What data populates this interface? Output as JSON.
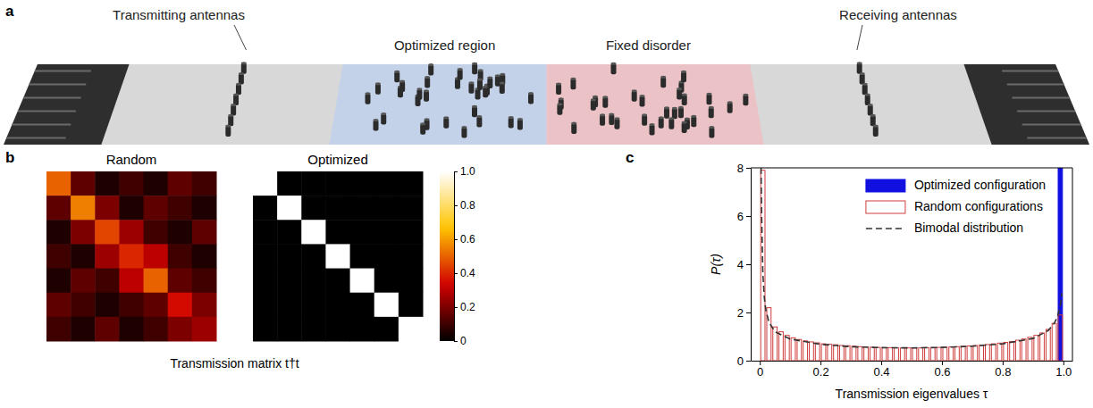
{
  "panel_labels": [
    "a",
    "b",
    "c"
  ],
  "diagram": {
    "labels": [
      "Transmitting antennas",
      "Optimized region",
      "Fixed disorder",
      "Receiving antennas"
    ]
  },
  "chart_data": [
    {
      "type": "heatmap",
      "title": "Random",
      "xlabel": "Transmission matrix t†t",
      "tick_labels": false,
      "cells": [
        [
          0.5,
          0.15,
          0.05,
          0.1,
          0.05,
          0.15,
          0.1
        ],
        [
          0.15,
          0.55,
          0.2,
          0.05,
          0.15,
          0.1,
          0.05
        ],
        [
          0.05,
          0.2,
          0.45,
          0.25,
          0.1,
          0.05,
          0.15
        ],
        [
          0.1,
          0.05,
          0.25,
          0.4,
          0.3,
          0.1,
          0.05
        ],
        [
          0.05,
          0.15,
          0.1,
          0.3,
          0.5,
          0.15,
          0.1
        ],
        [
          0.15,
          0.1,
          0.05,
          0.1,
          0.15,
          0.35,
          0.2
        ],
        [
          0.1,
          0.05,
          0.15,
          0.05,
          0.1,
          0.2,
          0.25
        ]
      ]
    },
    {
      "type": "heatmap",
      "title": "Optimized",
      "tick_labels": false,
      "cells": [
        [
          1,
          0,
          0,
          0,
          0,
          0,
          0
        ],
        [
          0,
          1,
          0,
          0,
          0,
          0,
          0
        ],
        [
          0,
          0,
          1,
          0,
          0,
          0,
          0
        ],
        [
          0,
          0,
          0,
          1,
          0,
          0,
          0
        ],
        [
          0,
          0,
          0,
          0,
          1,
          0,
          0
        ],
        [
          0,
          0,
          0,
          0,
          0,
          1,
          0
        ],
        [
          0,
          0,
          0,
          0,
          0,
          0,
          1
        ]
      ],
      "color_range": [
        0,
        1
      ],
      "color_ticks": [
        0,
        0.2,
        0.4,
        0.6,
        0.8,
        {
          "value": 1,
          "label": "1.0"
        }
      ]
    },
    {
      "type": "histogram",
      "xlabel": "Transmission eigenvalues τ",
      "ylabel": "P(τ)",
      "xlim": [
        -0.03,
        1.03
      ],
      "ylim": [
        0,
        8
      ],
      "xticks": [
        0,
        0.2,
        0.4,
        0.6,
        0.8,
        {
          "value": 1,
          "label": "1.0"
        }
      ],
      "yticks": [
        0,
        2,
        4,
        6,
        8
      ],
      "grid": false,
      "legend": "upper right",
      "series": [
        {
          "name": "Optimized configuration",
          "type": "bar",
          "marker": "filled",
          "color": "#1010e0",
          "bins": [
            0.98,
            1.0
          ],
          "values": [
            8
          ]
        },
        {
          "name": "Random configurations",
          "type": "bar",
          "marker": "hollow",
          "color": "#d03c3c",
          "bins": [
            0,
            0.02,
            0.04,
            0.06,
            0.08,
            0.1,
            0.12,
            0.14,
            0.16,
            0.18,
            0.2,
            0.22,
            0.24,
            0.26,
            0.28,
            0.3,
            0.32,
            0.34,
            0.36,
            0.38,
            0.4,
            0.42,
            0.44,
            0.46,
            0.48,
            0.5,
            0.52,
            0.54,
            0.56,
            0.58,
            0.6,
            0.62,
            0.64,
            0.66,
            0.68,
            0.7,
            0.72,
            0.74,
            0.76,
            0.78,
            0.8,
            0.82,
            0.84,
            0.86,
            0.88,
            0.9,
            0.92,
            0.94,
            0.96,
            0.98,
            1.0
          ],
          "values": [
            7.9,
            2.2,
            1.4,
            1.2,
            1.05,
            0.95,
            0.88,
            0.82,
            0.78,
            0.74,
            0.7,
            0.68,
            0.66,
            0.63,
            0.62,
            0.6,
            0.58,
            0.57,
            0.56,
            0.55,
            0.54,
            0.54,
            0.53,
            0.53,
            0.53,
            0.53,
            0.53,
            0.54,
            0.54,
            0.55,
            0.56,
            0.57,
            0.58,
            0.6,
            0.61,
            0.63,
            0.65,
            0.67,
            0.7,
            0.73,
            0.76,
            0.8,
            0.85,
            0.9,
            0.97,
            1.05,
            1.15,
            1.3,
            1.55,
            1.9
          ]
        },
        {
          "name": "Bimodal distribution",
          "type": "line",
          "line_style": "dashed",
          "color": "#333333",
          "x": [
            0.004,
            0.006,
            0.01,
            0.015,
            0.02,
            0.03,
            0.05,
            0.1,
            0.2,
            0.3,
            0.4,
            0.5,
            0.6,
            0.7,
            0.8,
            0.9,
            0.95,
            0.97,
            0.98,
            0.99,
            0.995
          ],
          "values": [
            8.0,
            6.0,
            3.6,
            2.6,
            2.1,
            1.6,
            1.2,
            0.9,
            0.68,
            0.58,
            0.54,
            0.53,
            0.55,
            0.6,
            0.7,
            0.92,
            1.25,
            1.55,
            1.8,
            2.3,
            2.8
          ]
        }
      ]
    }
  ]
}
